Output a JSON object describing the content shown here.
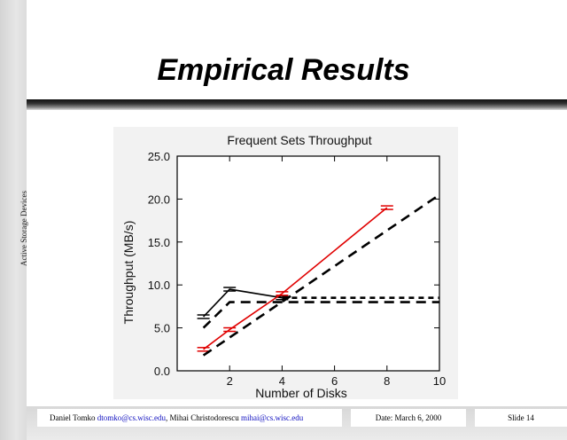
{
  "slide": {
    "title": "Empirical Results",
    "side_label": "Active Storage Devices"
  },
  "footer": {
    "author1": "Daniel Tomko",
    "email1": "dtomko@cs.wisc.edu",
    "sep": ", ",
    "author2": "Mihai Christodorescu",
    "email2": "mihai@cs.wisc.edu",
    "date": "Date: March 6, 2000",
    "slide_number": "Slide 14"
  },
  "chart_data": {
    "type": "line",
    "title": "Frequent Sets Throughput",
    "xlabel": "Number of Disks",
    "ylabel": "Throughput (MB/s)",
    "xlim": [
      0,
      10
    ],
    "ylim": [
      0,
      25
    ],
    "xticks": [
      "2",
      "4",
      "6",
      "8",
      "10"
    ],
    "xtick_values": [
      2,
      4,
      6,
      8,
      10
    ],
    "yticks": [
      "0.0",
      "5.0",
      "10.0",
      "15.0",
      "20.0",
      "25.0"
    ],
    "ytick_values": [
      0,
      5,
      10,
      15,
      20,
      25
    ],
    "grid": false,
    "series": [
      {
        "x": [
          1,
          2,
          4
        ],
        "y": [
          6.3,
          9.5,
          8.5
        ],
        "color": "#000000",
        "dash": "solid",
        "errorbars": true
      },
      {
        "x": [
          1,
          2,
          4,
          8
        ],
        "y": [
          2.5,
          4.8,
          9.0,
          19.0
        ],
        "color": "#e00000",
        "dash": "solid",
        "errorbars": true
      },
      {
        "x": [
          1,
          10
        ],
        "y": [
          1.8,
          20.5
        ],
        "color": "#000000",
        "dash": "long",
        "errorbars": false
      },
      {
        "x": [
          1,
          2,
          10
        ],
        "y": [
          5.0,
          8.0,
          8.0
        ],
        "color": "#000000",
        "dash": "long",
        "errorbars": false
      },
      {
        "x": [
          4,
          10
        ],
        "y": [
          8.5,
          8.5
        ],
        "color": "#000000",
        "dash": "short",
        "errorbars": false
      }
    ]
  }
}
